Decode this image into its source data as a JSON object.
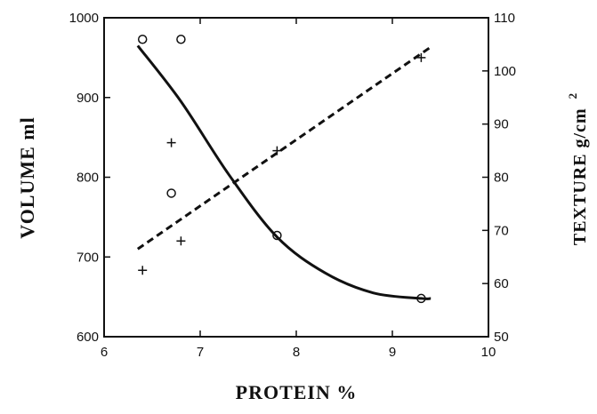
{
  "chart_data": {
    "type": "scatter",
    "xlabel": "PROTEIN %",
    "ylabel_left": "VOLUME ml",
    "ylabel_right": "TEXTURE g/cm",
    "ylabel_right_superscript": "2",
    "xlim": [
      6,
      10
    ],
    "ylim_left": [
      600,
      1000
    ],
    "ylim_right": [
      50,
      110
    ],
    "x_ticks": [
      "6",
      "7",
      "8",
      "9",
      "10"
    ],
    "y_left_ticks": [
      "600",
      "700",
      "800",
      "900",
      "1000"
    ],
    "y_right_ticks": [
      "50",
      "60",
      "70",
      "80",
      "90",
      "100",
      "110"
    ],
    "series": [
      {
        "axis": "left",
        "marker": "circle",
        "points": [
          {
            "x": 6.4,
            "y": 973
          },
          {
            "x": 6.8,
            "y": 973
          },
          {
            "x": 6.7,
            "y": 780
          },
          {
            "x": 7.8,
            "y": 727
          },
          {
            "x": 9.3,
            "y": 648
          }
        ],
        "fit": {
          "style": "solid",
          "points": [
            [
              6.35,
              965
            ],
            [
              6.8,
              895
            ],
            [
              7.3,
              803
            ],
            [
              7.8,
              725
            ],
            [
              8.3,
              680
            ],
            [
              8.8,
              655
            ],
            [
              9.3,
              648
            ],
            [
              9.4,
              648
            ]
          ]
        }
      },
      {
        "axis": "right",
        "marker": "plus",
        "points": [
          {
            "x": 6.4,
            "y": 62.5
          },
          {
            "x": 6.7,
            "y": 86.5
          },
          {
            "x": 6.8,
            "y": 68
          },
          {
            "x": 7.8,
            "y": 85
          },
          {
            "x": 9.3,
            "y": 102.5
          }
        ],
        "fit": {
          "style": "dashed",
          "points": [
            [
              6.35,
              66.5
            ],
            [
              9.4,
              104.5
            ]
          ]
        }
      }
    ]
  }
}
